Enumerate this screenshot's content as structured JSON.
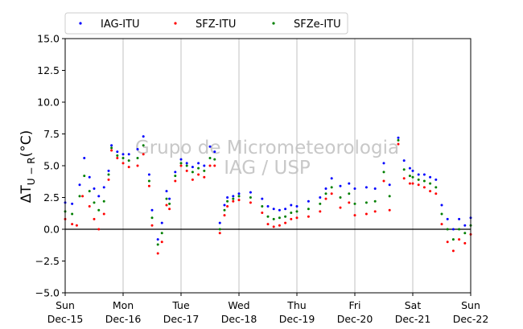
{
  "chart_data": {
    "type": "scatter",
    "title": "",
    "xlabel": "",
    "ylabel_main": "ΔT",
    "ylabel_sub": "U − R",
    "ylabel_unit": "(°C)",
    "watermark": [
      "Grupo de Micrometeorologia",
      "IAG / USP"
    ],
    "ylim": [
      -5.0,
      15.0
    ],
    "yticks": [
      "−5.0",
      "−2.5",
      "0.0",
      "2.5",
      "5.0",
      "7.5",
      "10.0",
      "12.5",
      "15.0"
    ],
    "ytick_values": [
      -5,
      -2.5,
      0,
      2.5,
      5,
      7.5,
      10,
      12.5,
      15
    ],
    "xlim": [
      "2019-12-15",
      "2019-12-22"
    ],
    "xticks": [
      {
        "day": "Sun",
        "date": "Dec-15"
      },
      {
        "day": "Mon",
        "date": "Dec-16"
      },
      {
        "day": "Tue",
        "date": "Dec-17"
      },
      {
        "day": "Wed",
        "date": "Dec-18"
      },
      {
        "day": "Thu",
        "date": "Dec-19"
      },
      {
        "day": "Fri",
        "date": "Dec-20"
      },
      {
        "day": "Sat",
        "date": "Dec-21"
      },
      {
        "day": "Sun",
        "date": "Dec-22"
      }
    ],
    "grid": "vertical",
    "reference_line": 0,
    "legend_position": "top-left-outside",
    "series": [
      {
        "name": "IAG-ITU",
        "color": "#0000ff",
        "x_days": [
          0,
          0.12,
          0.25,
          0.33,
          0.42,
          0.5,
          0.58,
          0.67,
          0.75,
          0.8,
          0.9,
          1.0,
          1.1,
          1.25,
          1.35,
          1.45,
          1.5,
          1.6,
          1.67,
          1.75,
          1.8,
          1.9,
          2.0,
          2.1,
          2.2,
          2.3,
          2.4,
          2.5,
          2.58,
          2.67,
          2.75,
          2.8,
          2.9,
          3.0,
          3.2,
          3.4,
          3.5,
          3.6,
          3.7,
          3.8,
          3.9,
          4.0,
          4.2,
          4.4,
          4.5,
          4.6,
          4.75,
          4.9,
          5.0,
          5.2,
          5.35,
          5.5,
          5.6,
          5.75,
          5.85,
          5.95,
          6.0,
          6.1,
          6.2,
          6.3,
          6.4,
          6.5,
          6.6,
          6.7,
          6.8,
          6.9,
          7.0
        ],
        "y": [
          2.1,
          2.0,
          3.5,
          5.6,
          4.1,
          3.2,
          2.6,
          3.3,
          4.6,
          6.6,
          6.1,
          5.9,
          5.9,
          6.3,
          7.3,
          4.3,
          1.5,
          -0.8,
          0.5,
          3.0,
          2.4,
          4.5,
          5.5,
          5.2,
          4.9,
          5.2,
          5.0,
          6.5,
          6.1,
          0.5,
          1.9,
          2.5,
          2.6,
          2.8,
          2.9,
          2.4,
          1.8,
          1.6,
          1.5,
          1.6,
          1.9,
          1.8,
          2.2,
          2.5,
          3.2,
          4.0,
          3.4,
          3.6,
          3.2,
          3.3,
          3.2,
          5.2,
          3.5,
          7.2,
          5.4,
          4.8,
          4.6,
          4.3,
          4.3,
          4.1,
          3.9,
          1.9,
          0.8,
          0.0,
          0.8,
          0.3,
          0.9
        ]
      },
      {
        "name": "SFZ-ITU",
        "color": "#ff0000",
        "x_days": [
          0,
          0.12,
          0.2,
          0.3,
          0.42,
          0.5,
          0.58,
          0.67,
          0.75,
          0.8,
          0.9,
          1.0,
          1.1,
          1.25,
          1.35,
          1.45,
          1.5,
          1.6,
          1.67,
          1.75,
          1.8,
          1.9,
          2.0,
          2.1,
          2.2,
          2.3,
          2.4,
          2.5,
          2.58,
          2.67,
          2.75,
          2.8,
          2.9,
          3.0,
          3.2,
          3.4,
          3.5,
          3.6,
          3.7,
          3.8,
          3.9,
          4.0,
          4.2,
          4.4,
          4.5,
          4.6,
          4.75,
          4.9,
          5.0,
          5.2,
          5.35,
          5.5,
          5.6,
          5.75,
          5.85,
          5.95,
          6.0,
          6.1,
          6.2,
          6.3,
          6.4,
          6.5,
          6.6,
          6.7,
          6.8,
          6.9,
          7.0
        ],
        "y": [
          0.8,
          0.4,
          0.3,
          2.6,
          1.8,
          0.8,
          0.0,
          1.2,
          3.9,
          6.2,
          5.6,
          5.2,
          4.9,
          5.0,
          5.9,
          3.4,
          0.3,
          -1.9,
          -1.0,
          1.9,
          1.6,
          3.8,
          5.0,
          4.6,
          3.9,
          4.3,
          4.1,
          5.0,
          5.0,
          -0.3,
          1.1,
          1.8,
          2.2,
          2.3,
          2.1,
          1.3,
          0.4,
          0.2,
          0.3,
          0.5,
          0.8,
          0.9,
          1.0,
          1.4,
          2.4,
          2.8,
          1.7,
          2.1,
          1.1,
          1.2,
          1.4,
          3.8,
          1.5,
          6.7,
          4.0,
          3.6,
          3.6,
          3.5,
          3.3,
          3.0,
          2.8,
          0.4,
          -1.0,
          -1.7,
          -0.8,
          -1.1,
          -0.4
        ]
      },
      {
        "name": "SFZe-ITU",
        "color": "#008000",
        "x_days": [
          0,
          0.12,
          0.25,
          0.33,
          0.42,
          0.5,
          0.58,
          0.67,
          0.75,
          0.8,
          0.9,
          1.0,
          1.1,
          1.25,
          1.35,
          1.45,
          1.5,
          1.6,
          1.67,
          1.75,
          1.8,
          1.9,
          2.0,
          2.1,
          2.2,
          2.3,
          2.4,
          2.5,
          2.58,
          2.67,
          2.75,
          2.8,
          2.9,
          3.0,
          3.2,
          3.4,
          3.5,
          3.6,
          3.7,
          3.8,
          3.9,
          4.0,
          4.2,
          4.4,
          4.5,
          4.6,
          4.75,
          4.9,
          5.0,
          5.2,
          5.35,
          5.5,
          5.6,
          5.75,
          5.85,
          5.95,
          6.0,
          6.1,
          6.2,
          6.3,
          6.4,
          6.5,
          6.6,
          6.7,
          6.8,
          6.9,
          7.0
        ],
        "y": [
          1.4,
          1.2,
          2.6,
          4.2,
          3.0,
          2.1,
          1.5,
          2.2,
          4.3,
          6.4,
          5.8,
          5.6,
          5.4,
          5.6,
          6.6,
          3.8,
          0.9,
          -1.2,
          -0.3,
          2.4,
          2.0,
          4.2,
          5.2,
          5.0,
          4.5,
          4.8,
          4.6,
          5.6,
          5.5,
          0.0,
          1.5,
          2.2,
          2.4,
          2.6,
          2.5,
          1.8,
          1.0,
          0.8,
          0.9,
          1.0,
          1.3,
          1.4,
          1.6,
          2.0,
          2.8,
          3.3,
          2.5,
          2.8,
          2.0,
          2.1,
          2.2,
          4.5,
          2.6,
          7.0,
          4.7,
          4.2,
          4.1,
          3.9,
          3.8,
          3.6,
          3.3,
          1.2,
          0.0,
          -0.8,
          0.0,
          -0.3,
          0.3
        ]
      }
    ]
  }
}
